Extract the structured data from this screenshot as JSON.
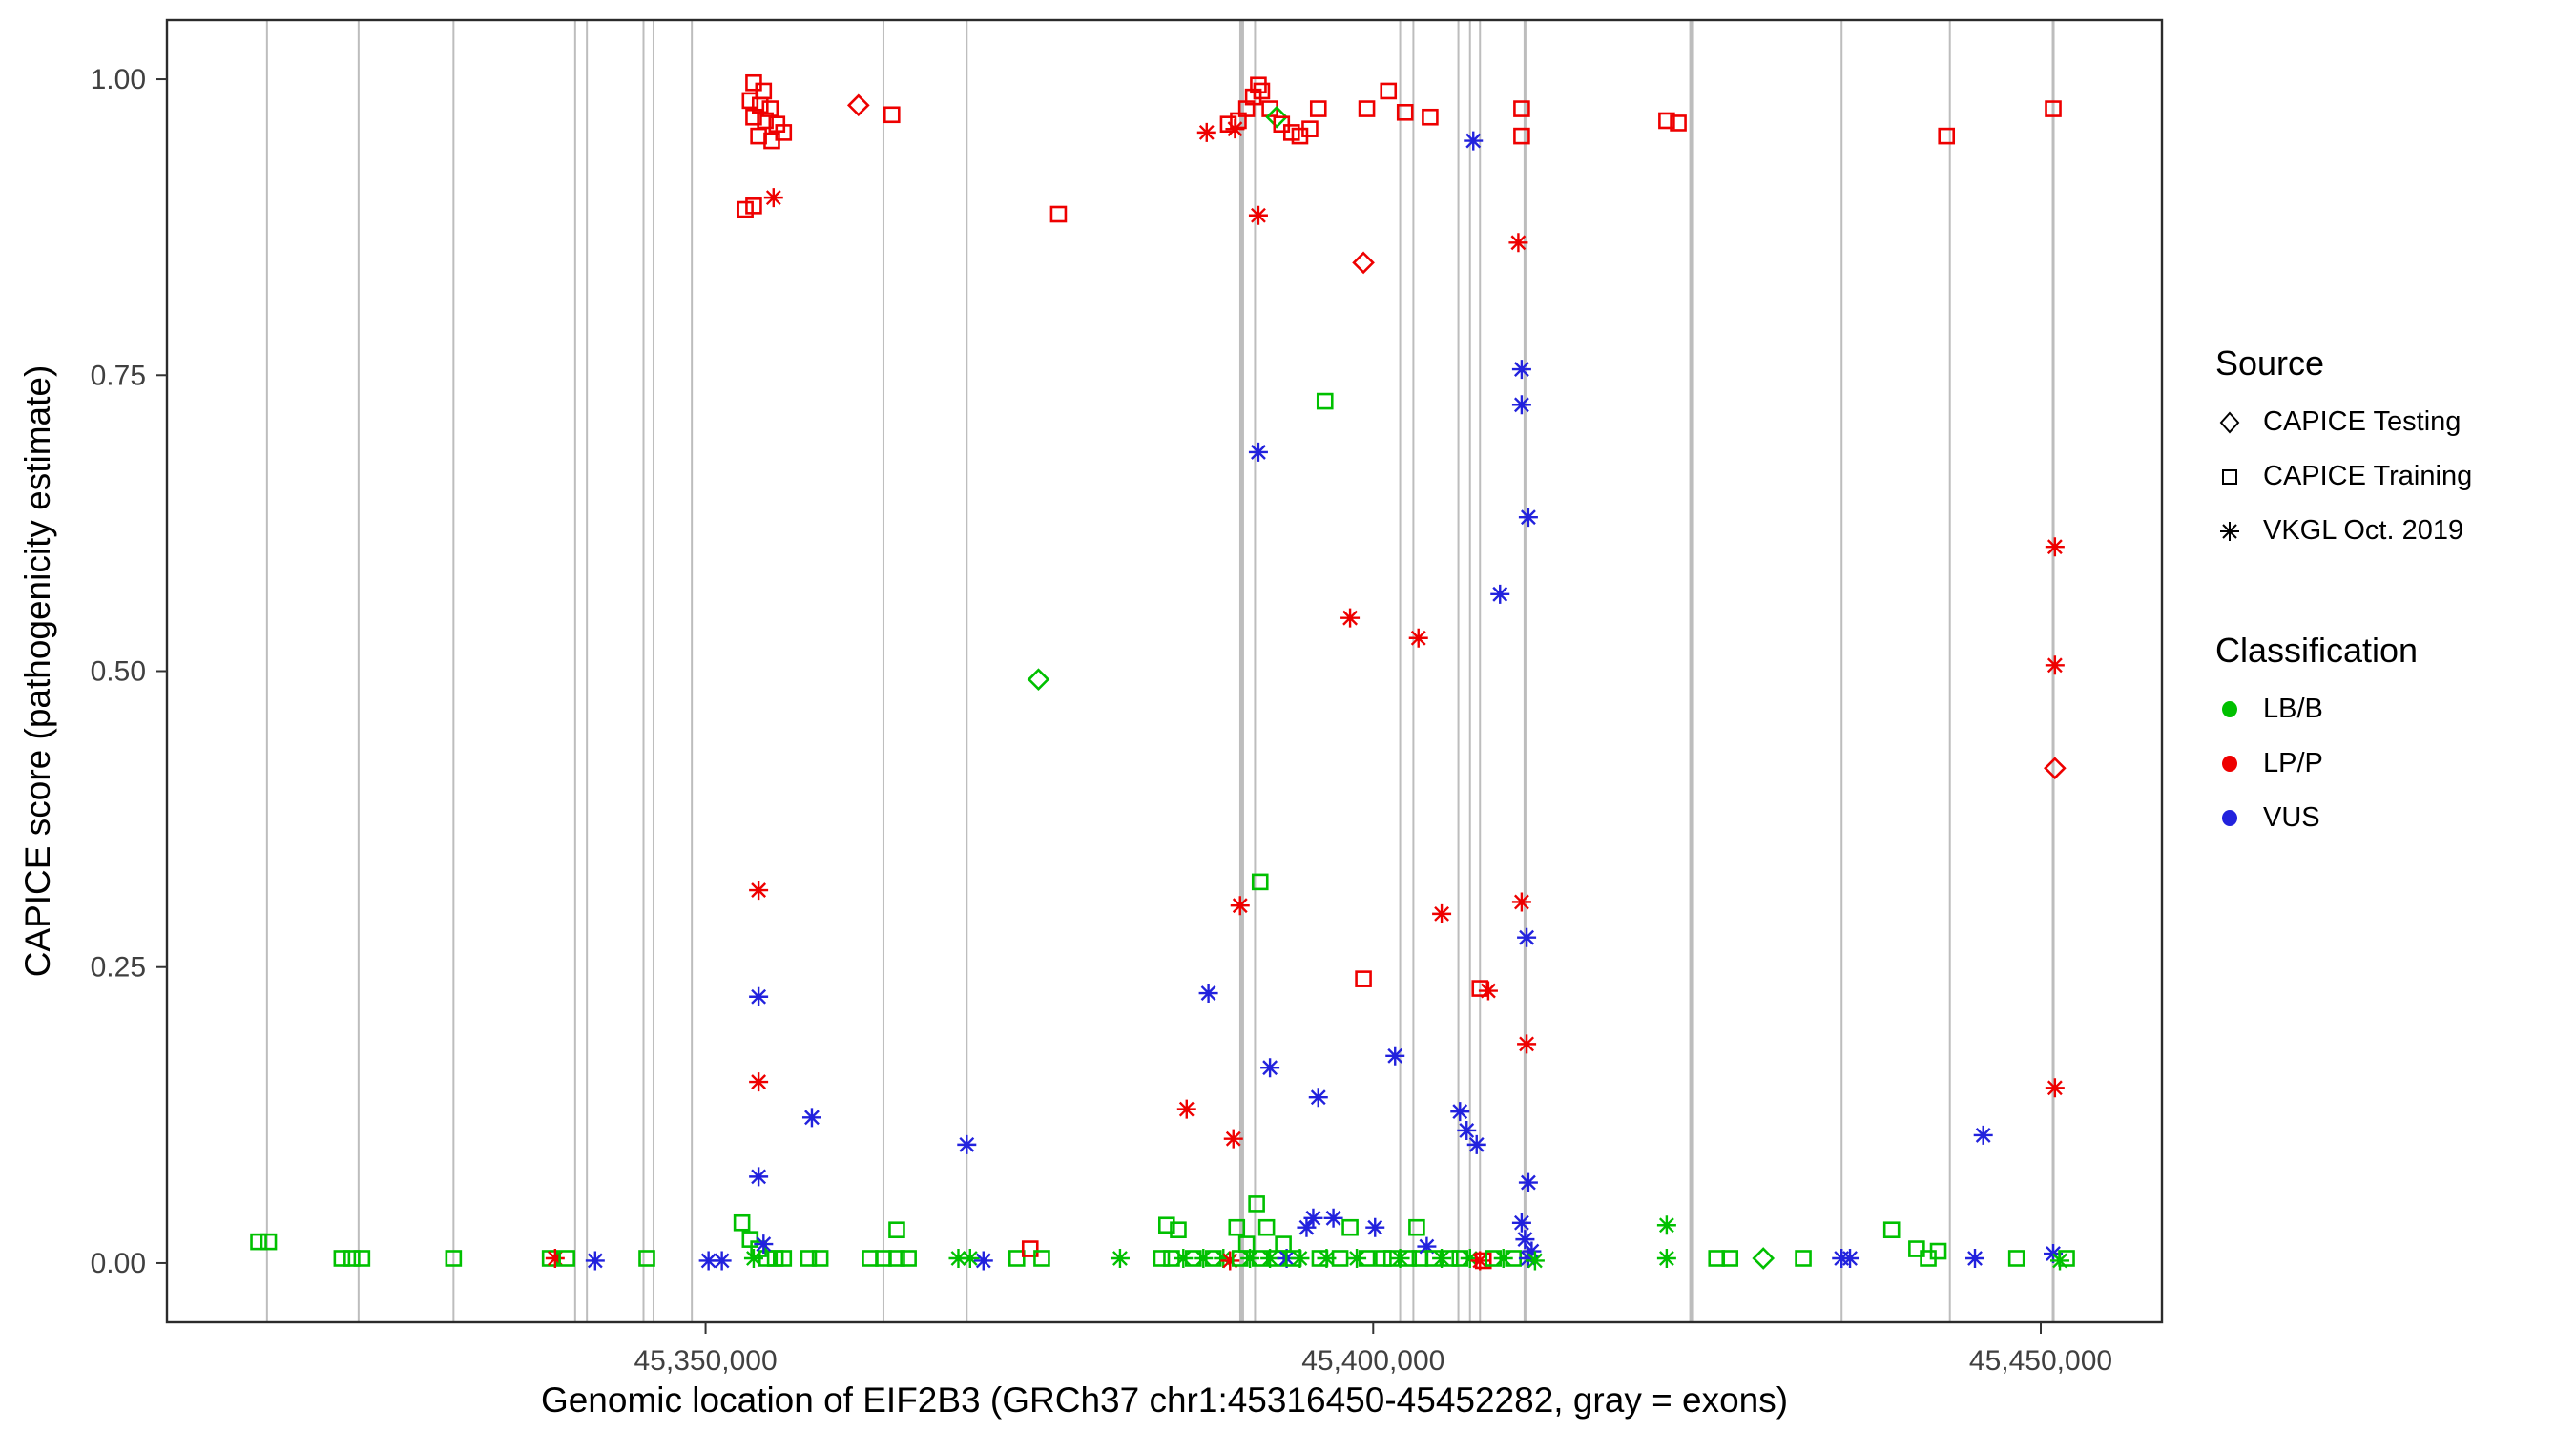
{
  "chart_data": {
    "type": "scatter",
    "title": "",
    "xlabel": "Genomic location of EIF2B3 (GRCh37 chr1:45316450-45452282, gray = exons)",
    "ylabel": "CAPICE score (pathogenicity estimate)",
    "x_range": [
      45309658,
      45459074
    ],
    "y_range": [
      -0.05,
      1.05
    ],
    "x_ticks": [
      {
        "value": 45350000,
        "label": "45,350,000"
      },
      {
        "value": 45400000,
        "label": "45,400,000"
      },
      {
        "value": 45450000,
        "label": "45,450,000"
      }
    ],
    "y_ticks": [
      {
        "value": 0.0,
        "label": "0.00"
      },
      {
        "value": 0.25,
        "label": "0.25"
      },
      {
        "value": 0.5,
        "label": "0.50"
      },
      {
        "value": 0.75,
        "label": "0.75"
      },
      {
        "value": 1.0,
        "label": "1.00"
      }
    ],
    "grid": false,
    "legend_position": "right",
    "exon_color": "#bdbdbd",
    "exons": [
      [
        45317150,
        2
      ],
      [
        45324010,
        2
      ],
      [
        45331120,
        2
      ],
      [
        45340230,
        2
      ],
      [
        45341110,
        2
      ],
      [
        45345350,
        2
      ],
      [
        45346100,
        2
      ],
      [
        45348970,
        2
      ],
      [
        45363320,
        2
      ],
      [
        45369560,
        2
      ],
      [
        45390150,
        5
      ],
      [
        45391150,
        2
      ],
      [
        45402020,
        2
      ],
      [
        45403010,
        2
      ],
      [
        45406380,
        2
      ],
      [
        45407250,
        2
      ],
      [
        45408000,
        2
      ],
      [
        45411370,
        3
      ],
      [
        45423850,
        5
      ],
      [
        45435080,
        2
      ],
      [
        45443190,
        2
      ],
      [
        45450930,
        3
      ]
    ],
    "colors": {
      "LB/B": "#00C000",
      "LP/P": "#EE0000",
      "VUS": "#2222DD"
    },
    "shapes": {
      "CAPICE Testing": "diamond",
      "CAPICE Training": "square",
      "VKGL Oct. 2019": "asterisk"
    },
    "class_codes": {
      "g": "LB/B",
      "r": "LP/P",
      "b": "VUS"
    },
    "shape_codes": {
      "q": "square",
      "d": "diamond",
      "a": "asterisk"
    },
    "points": [
      [
        45353600,
        0.997,
        "q",
        "r"
      ],
      [
        45354340,
        0.99,
        "q",
        "r"
      ],
      [
        45353340,
        0.982,
        "q",
        "r"
      ],
      [
        45354090,
        0.978,
        "q",
        "r"
      ],
      [
        45354840,
        0.975,
        "q",
        "r"
      ],
      [
        45353600,
        0.968,
        "q",
        "r"
      ],
      [
        45354470,
        0.965,
        "q",
        "r"
      ],
      [
        45355340,
        0.962,
        "q",
        "r"
      ],
      [
        45353970,
        0.952,
        "q",
        "r"
      ],
      [
        45354960,
        0.948,
        "q",
        "r"
      ],
      [
        45355840,
        0.955,
        "q",
        "r"
      ],
      [
        45352970,
        0.89,
        "q",
        "r"
      ],
      [
        45353600,
        0.893,
        "q",
        "r"
      ],
      [
        45355090,
        0.9,
        "a",
        "r"
      ],
      [
        45361450,
        0.978,
        "d",
        "r"
      ],
      [
        45363950,
        0.97,
        "q",
        "r"
      ],
      [
        45376430,
        0.886,
        "q",
        "r"
      ],
      [
        45387530,
        0.955,
        "a",
        "r"
      ],
      [
        45389150,
        0.962,
        "q",
        "r"
      ],
      [
        45389650,
        0.958,
        "a",
        "r"
      ],
      [
        45389900,
        0.965,
        "q",
        "r"
      ],
      [
        45390520,
        0.975,
        "q",
        "r"
      ],
      [
        45391020,
        0.985,
        "q",
        "r"
      ],
      [
        45391400,
        0.995,
        "q",
        "r"
      ],
      [
        45391650,
        0.99,
        "q",
        "r"
      ],
      [
        45392270,
        0.975,
        "q",
        "r"
      ],
      [
        45392770,
        0.968,
        "d",
        "g"
      ],
      [
        45393140,
        0.962,
        "q",
        "r"
      ],
      [
        45393890,
        0.955,
        "q",
        "r"
      ],
      [
        45394510,
        0.952,
        "q",
        "r"
      ],
      [
        45395260,
        0.958,
        "q",
        "r"
      ],
      [
        45395890,
        0.975,
        "q",
        "r"
      ],
      [
        45391400,
        0.885,
        "a",
        "r"
      ],
      [
        45399520,
        0.975,
        "q",
        "r"
      ],
      [
        45401140,
        0.99,
        "q",
        "r"
      ],
      [
        45402390,
        0.972,
        "q",
        "r"
      ],
      [
        45404260,
        0.968,
        "q",
        "r"
      ],
      [
        45399270,
        0.845,
        "d",
        "r"
      ],
      [
        45407500,
        0.948,
        "a",
        "b"
      ],
      [
        45411120,
        0.975,
        "q",
        "r"
      ],
      [
        45411120,
        0.952,
        "q",
        "r"
      ],
      [
        45410870,
        0.862,
        "a",
        "r"
      ],
      [
        45421980,
        0.965,
        "q",
        "r"
      ],
      [
        45422850,
        0.963,
        "q",
        "r"
      ],
      [
        45442940,
        0.952,
        "q",
        "r"
      ],
      [
        45450930,
        0.975,
        "q",
        "r"
      ],
      [
        45411120,
        0.755,
        "a",
        "b"
      ],
      [
        45411120,
        0.725,
        "a",
        "b"
      ],
      [
        45396390,
        0.728,
        "q",
        "g"
      ],
      [
        45391400,
        0.685,
        "a",
        "b"
      ],
      [
        45411620,
        0.63,
        "a",
        "b"
      ],
      [
        45409500,
        0.565,
        "a",
        "b"
      ],
      [
        45398270,
        0.545,
        "a",
        "r"
      ],
      [
        45403390,
        0.528,
        "a",
        "r"
      ],
      [
        45374930,
        0.493,
        "d",
        "g"
      ],
      [
        45451060,
        0.605,
        "a",
        "r"
      ],
      [
        45451060,
        0.505,
        "a",
        "r"
      ],
      [
        45451060,
        0.418,
        "d",
        "r"
      ],
      [
        45353970,
        0.315,
        "a",
        "r"
      ],
      [
        45391530,
        0.322,
        "q",
        "g"
      ],
      [
        45390030,
        0.302,
        "a",
        "r"
      ],
      [
        45405130,
        0.295,
        "a",
        "r"
      ],
      [
        45411120,
        0.305,
        "a",
        "r"
      ],
      [
        45411490,
        0.275,
        "a",
        "b"
      ],
      [
        45399270,
        0.24,
        "q",
        "r"
      ],
      [
        45408000,
        0.232,
        "q",
        "r"
      ],
      [
        45408620,
        0.23,
        "a",
        "r"
      ],
      [
        45353970,
        0.225,
        "a",
        "b"
      ],
      [
        45387660,
        0.228,
        "a",
        "b"
      ],
      [
        45401640,
        0.175,
        "a",
        "b"
      ],
      [
        45411490,
        0.185,
        "a",
        "r"
      ],
      [
        45392270,
        0.165,
        "a",
        "b"
      ],
      [
        45395890,
        0.14,
        "a",
        "b"
      ],
      [
        45353970,
        0.153,
        "a",
        "r"
      ],
      [
        45386030,
        0.13,
        "a",
        "r"
      ],
      [
        45357960,
        0.123,
        "a",
        "b"
      ],
      [
        45406500,
        0.128,
        "a",
        "b"
      ],
      [
        45407000,
        0.112,
        "a",
        "b"
      ],
      [
        45369560,
        0.1,
        "a",
        "b"
      ],
      [
        45389530,
        0.105,
        "a",
        "r"
      ],
      [
        45407750,
        0.1,
        "a",
        "b"
      ],
      [
        45353970,
        0.073,
        "a",
        "b"
      ],
      [
        45411620,
        0.068,
        "a",
        "b"
      ],
      [
        45445690,
        0.108,
        "a",
        "b"
      ],
      [
        45451060,
        0.148,
        "a",
        "r"
      ],
      [
        45316520,
        0.018,
        "q",
        "g"
      ],
      [
        45317270,
        0.018,
        "q",
        "g"
      ],
      [
        45322760,
        0.004,
        "q",
        "g"
      ],
      [
        45323510,
        0.004,
        "q",
        "g"
      ],
      [
        45324260,
        0.004,
        "q",
        "g"
      ],
      [
        45331120,
        0.004,
        "q",
        "g"
      ],
      [
        45338360,
        0.004,
        "q",
        "g"
      ],
      [
        45338730,
        0.004,
        "a",
        "r"
      ],
      [
        45339610,
        0.004,
        "q",
        "g"
      ],
      [
        45341730,
        0.002,
        "a",
        "b"
      ],
      [
        45345600,
        0.004,
        "q",
        "g"
      ],
      [
        45350220,
        0.002,
        "a",
        "b"
      ],
      [
        45351220,
        0.002,
        "a",
        "b"
      ],
      [
        45352720,
        0.034,
        "q",
        "g"
      ],
      [
        45353340,
        0.02,
        "q",
        "g"
      ],
      [
        45353970,
        0.012,
        "q",
        "g"
      ],
      [
        45354590,
        0.004,
        "q",
        "g"
      ],
      [
        45355220,
        0.004,
        "q",
        "g"
      ],
      [
        45355840,
        0.004,
        "q",
        "g"
      ],
      [
        45354340,
        0.016,
        "a",
        "b"
      ],
      [
        45353600,
        0.004,
        "a",
        "g"
      ],
      [
        45357710,
        0.004,
        "q",
        "g"
      ],
      [
        45358580,
        0.004,
        "q",
        "g"
      ],
      [
        45362320,
        0.004,
        "q",
        "g"
      ],
      [
        45363320,
        0.004,
        "q",
        "g"
      ],
      [
        45364320,
        0.028,
        "q",
        "g"
      ],
      [
        45364320,
        0.004,
        "q",
        "g"
      ],
      [
        45365190,
        0.004,
        "q",
        "g"
      ],
      [
        45368930,
        0.004,
        "a",
        "g"
      ],
      [
        45369810,
        0.004,
        "a",
        "g"
      ],
      [
        45370810,
        0.002,
        "a",
        "b"
      ],
      [
        45373310,
        0.004,
        "q",
        "g"
      ],
      [
        45374310,
        0.012,
        "q",
        "r"
      ],
      [
        45375180,
        0.004,
        "q",
        "g"
      ],
      [
        45381040,
        0.004,
        "a",
        "g"
      ],
      [
        45384530,
        0.032,
        "q",
        "g"
      ],
      [
        45385400,
        0.028,
        "q",
        "g"
      ],
      [
        45384150,
        0.004,
        "q",
        "g"
      ],
      [
        45384900,
        0.004,
        "q",
        "g"
      ],
      [
        45385780,
        0.004,
        "a",
        "g"
      ],
      [
        45386530,
        0.004,
        "q",
        "g"
      ],
      [
        45387280,
        0.004,
        "a",
        "g"
      ],
      [
        45388030,
        0.004,
        "q",
        "g"
      ],
      [
        45388780,
        0.004,
        "a",
        "g"
      ],
      [
        45389280,
        0.002,
        "a",
        "r"
      ],
      [
        45389780,
        0.03,
        "q",
        "g"
      ],
      [
        45390030,
        0.004,
        "q",
        "g"
      ],
      [
        45390520,
        0.016,
        "q",
        "g"
      ],
      [
        45390770,
        0.004,
        "a",
        "g"
      ],
      [
        45391270,
        0.05,
        "q",
        "g"
      ],
      [
        45391530,
        0.004,
        "q",
        "g"
      ],
      [
        45392020,
        0.03,
        "q",
        "g"
      ],
      [
        45392270,
        0.004,
        "a",
        "g"
      ],
      [
        45392770,
        0.004,
        "q",
        "g"
      ],
      [
        45393270,
        0.016,
        "q",
        "g"
      ],
      [
        45393520,
        0.004,
        "a",
        "b"
      ],
      [
        45394020,
        0.004,
        "q",
        "g"
      ],
      [
        45394510,
        0.004,
        "a",
        "g"
      ],
      [
        45395010,
        0.03,
        "a",
        "b"
      ],
      [
        45395510,
        0.038,
        "a",
        "b"
      ],
      [
        45396010,
        0.004,
        "q",
        "g"
      ],
      [
        45396510,
        0.004,
        "a",
        "g"
      ],
      [
        45397020,
        0.038,
        "a",
        "b"
      ],
      [
        45397520,
        0.004,
        "q",
        "g"
      ],
      [
        45398270,
        0.03,
        "q",
        "g"
      ],
      [
        45398770,
        0.004,
        "a",
        "g"
      ],
      [
        45399520,
        0.004,
        "q",
        "g"
      ],
      [
        45400140,
        0.03,
        "a",
        "b"
      ],
      [
        45400760,
        0.004,
        "q",
        "g"
      ],
      [
        45401390,
        0.004,
        "q",
        "g"
      ],
      [
        45402020,
        0.004,
        "a",
        "g"
      ],
      [
        45402640,
        0.004,
        "q",
        "g"
      ],
      [
        45403260,
        0.03,
        "q",
        "g"
      ],
      [
        45403510,
        0.004,
        "q",
        "g"
      ],
      [
        45404010,
        0.014,
        "a",
        "b"
      ],
      [
        45404510,
        0.004,
        "q",
        "g"
      ],
      [
        45405130,
        0.004,
        "a",
        "g"
      ],
      [
        45405750,
        0.004,
        "q",
        "g"
      ],
      [
        45406500,
        0.004,
        "q",
        "g"
      ],
      [
        45407250,
        0.004,
        "a",
        "g"
      ],
      [
        45408000,
        0.002,
        "a",
        "r"
      ],
      [
        45408250,
        0.002,
        "q",
        "r"
      ],
      [
        45409000,
        0.004,
        "q",
        "g"
      ],
      [
        45409750,
        0.004,
        "a",
        "g"
      ],
      [
        45410500,
        0.004,
        "q",
        "g"
      ],
      [
        45411120,
        0.034,
        "a",
        "b"
      ],
      [
        45411370,
        0.02,
        "a",
        "b"
      ],
      [
        45411620,
        0.004,
        "a",
        "b"
      ],
      [
        45411870,
        0.01,
        "a",
        "b"
      ],
      [
        45412120,
        0.002,
        "a",
        "g"
      ],
      [
        45421980,
        0.032,
        "a",
        "g"
      ],
      [
        45421980,
        0.004,
        "a",
        "g"
      ],
      [
        45425720,
        0.004,
        "q",
        "g"
      ],
      [
        45426720,
        0.004,
        "q",
        "g"
      ],
      [
        45429220,
        0.004,
        "d",
        "g"
      ],
      [
        45432210,
        0.004,
        "q",
        "g"
      ],
      [
        45435080,
        0.004,
        "a",
        "b"
      ],
      [
        45435710,
        0.004,
        "a",
        "b"
      ],
      [
        45438830,
        0.028,
        "q",
        "g"
      ],
      [
        45440700,
        0.012,
        "q",
        "g"
      ],
      [
        45441570,
        0.004,
        "q",
        "g"
      ],
      [
        45442320,
        0.01,
        "q",
        "g"
      ],
      [
        45445070,
        0.004,
        "a",
        "b"
      ],
      [
        45448190,
        0.004,
        "q",
        "g"
      ],
      [
        45450930,
        0.008,
        "a",
        "b"
      ],
      [
        45451430,
        0.002,
        "a",
        "g"
      ],
      [
        45451930,
        0.004,
        "q",
        "g"
      ]
    ]
  },
  "legend": {
    "source": {
      "title": "Source",
      "items": [
        {
          "label": "CAPICE Testing",
          "shape": "diamond"
        },
        {
          "label": "CAPICE Training",
          "shape": "square"
        },
        {
          "label": "VKGL Oct. 2019",
          "shape": "asterisk"
        }
      ]
    },
    "classification": {
      "title": "Classification",
      "items": [
        {
          "label": "LB/B",
          "color": "#00C000"
        },
        {
          "label": "LP/P",
          "color": "#EE0000"
        },
        {
          "label": "VUS",
          "color": "#2222DD"
        }
      ]
    }
  }
}
